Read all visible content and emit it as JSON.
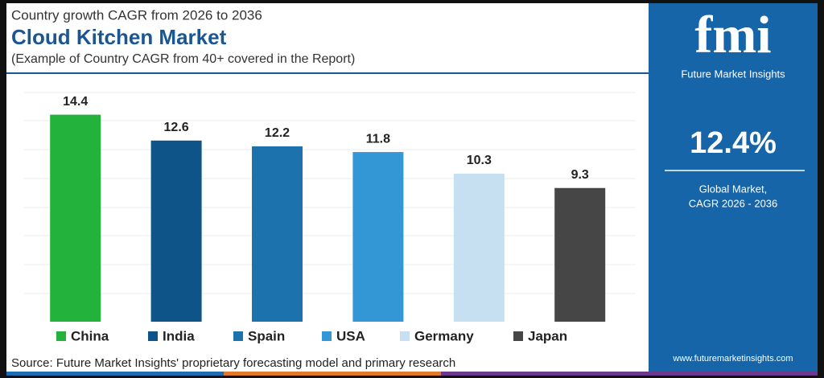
{
  "chart_data": {
    "type": "bar",
    "supertitle": "Country growth CAGR from 2026 to 2036",
    "title": "Cloud Kitchen Market",
    "subtitle": "(Example of Country CAGR from 40+ covered in the Report)",
    "categories": [
      "China",
      "India",
      "Spain",
      "USA",
      "Germany",
      "Japan"
    ],
    "values": [
      14.4,
      12.6,
      12.2,
      11.8,
      10.3,
      9.3
    ],
    "colors": [
      "#23b23b",
      "#0e5488",
      "#1c72ad",
      "#3497d5",
      "#c7e0f1",
      "#464646"
    ],
    "ylim": [
      0,
      16
    ],
    "source": "Source: Future Market Insights' proprietary forecasting model and primary research"
  },
  "side_panel": {
    "logo": "fmi",
    "brand": "Future Market Insights",
    "headline_value": "12.4%",
    "caption_line1": "Global Market,",
    "caption_line2": "CAGR 2026 - 2036",
    "website": "www.futuremarketinsights.com"
  }
}
